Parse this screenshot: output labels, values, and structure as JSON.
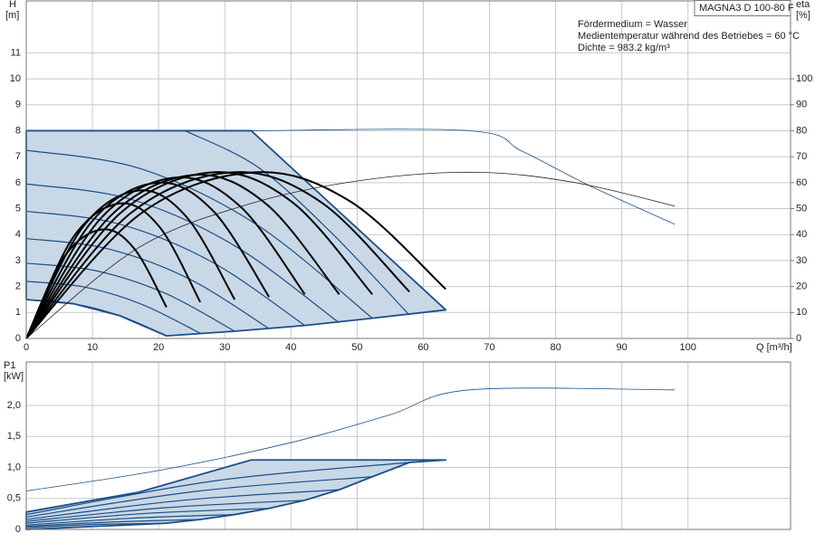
{
  "chart_data": [
    {
      "type": "line",
      "model": "MAGNA3 D 100-80 F",
      "annotations": [
        "Fördermedium = Wasser",
        "Medientemperatur während des Betriebes = 60 °C",
        "Dichte = 983.2 kg/m³"
      ],
      "y_label": "H",
      "y_unit": "[m]",
      "y2_label": "eta",
      "y2_unit": "[%]",
      "x_label": "Q [m³/h]",
      "xlim": [
        0,
        115.5
      ],
      "xticks": [
        0,
        10,
        20,
        30,
        40,
        50,
        60,
        70,
        80,
        90,
        100
      ],
      "xtick_labels": true,
      "ylim": [
        0,
        13
      ],
      "yticks": [
        0,
        1,
        2,
        3,
        4,
        5,
        6,
        7,
        8,
        9,
        10,
        11
      ],
      "y2lim": [
        0,
        130
      ],
      "y2ticks": [
        0,
        10,
        20,
        30,
        40,
        50,
        60,
        70,
        80,
        90,
        100
      ],
      "grid": true,
      "series": [
        {
          "kind": "area",
          "color": "#1c4f88",
          "fill": "#c9d8e6",
          "x": [
            0,
            34,
            63.4,
            52.3,
            42.1,
            31.5,
            21.2,
            14.1,
            7.1,
            0
          ],
          "values": [
            8,
            8,
            1.1,
            0.78,
            0.5,
            0.28,
            0.1,
            0.88,
            1.34,
            1.5
          ]
        },
        {
          "kind": "thin",
          "color": "#1c4f88",
          "x": [
            34,
            67,
            75,
            85,
            98
          ],
          "values": [
            8,
            8,
            7.2,
            5.9,
            4.4
          ]
        },
        {
          "kind": "line",
          "color": "#1c4f88",
          "x": [
            24,
            35,
            46,
            57.9
          ],
          "values": [
            8,
            6.6,
            4.1,
            0.9
          ]
        },
        {
          "kind": "line",
          "color": "#1c4f88",
          "x": [
            0,
            17.4,
            34.9,
            52.3
          ],
          "values": [
            7.25,
            6.53,
            4.37,
            0.78
          ]
        },
        {
          "kind": "line",
          "color": "#1c4f88",
          "x": [
            0,
            15.8,
            31.5,
            47.3
          ],
          "values": [
            5.95,
            5.36,
            3.57,
            0.6
          ]
        },
        {
          "kind": "line",
          "color": "#1c4f88",
          "x": [
            0,
            14,
            28.1,
            42.1
          ],
          "values": [
            4.9,
            4.41,
            2.94,
            0.5
          ]
        },
        {
          "kind": "line",
          "color": "#1c4f88",
          "x": [
            0,
            12.2,
            24.5,
            36.7
          ],
          "values": [
            3.85,
            3.46,
            2.31,
            0.38
          ]
        },
        {
          "kind": "line",
          "color": "#1c4f88",
          "x": [
            0,
            10.5,
            21,
            31.5
          ],
          "values": [
            2.9,
            2.61,
            1.74,
            0.28
          ]
        },
        {
          "kind": "line",
          "color": "#1c4f88",
          "x": [
            0,
            8.8,
            17.5,
            26.3
          ],
          "values": [
            2.2,
            1.98,
            1.31,
            0.2
          ]
        },
        {
          "kind": "line",
          "color": "#1c4f88",
          "x": [
            0,
            7.1,
            14.1,
            21.2
          ],
          "values": [
            1.5,
            1.34,
            0.88,
            0.1
          ]
        },
        {
          "kind": "thin",
          "color": "#222222",
          "axis": "y2",
          "x": [
            0,
            17,
            34,
            51,
            68,
            83,
            98
          ],
          "values": [
            0,
            35,
            52,
            61,
            64,
            60,
            51
          ]
        },
        {
          "kind": "bold",
          "color": "#000000",
          "axis": "y2",
          "x": [
            0,
            5.75,
            11.5,
            16.35,
            21.2
          ],
          "values": [
            0,
            31.5,
            42,
            34.5,
            12
          ]
        },
        {
          "kind": "bold",
          "color": "#000000",
          "axis": "y2",
          "x": [
            0,
            7.1,
            14.2,
            20.25,
            26.3
          ],
          "values": [
            0,
            39,
            52,
            42.6,
            14
          ]
        },
        {
          "kind": "bold",
          "color": "#000000",
          "axis": "y2",
          "x": [
            0,
            8.5,
            17,
            24.25,
            31.5
          ],
          "values": [
            0,
            42.75,
            57,
            46.7,
            15
          ]
        },
        {
          "kind": "bold",
          "color": "#000000",
          "axis": "y2",
          "x": [
            0,
            9.9,
            19.8,
            28.25,
            36.7
          ],
          "values": [
            0,
            45,
            60,
            49.1,
            16
          ]
        },
        {
          "kind": "bold",
          "color": "#000000",
          "axis": "y2",
          "x": [
            0,
            11.35,
            22.7,
            32.4,
            42.1
          ],
          "values": [
            0,
            46.5,
            62,
            50.7,
            17
          ]
        },
        {
          "kind": "bold",
          "color": "#000000",
          "axis": "y2",
          "x": [
            0,
            12.75,
            25.5,
            36.4,
            47.3
          ],
          "values": [
            0,
            47.25,
            63,
            51.5,
            17
          ]
        },
        {
          "kind": "bold",
          "color": "#000000",
          "axis": "y2",
          "x": [
            0,
            14.1,
            28.2,
            40.25,
            52.3
          ],
          "values": [
            0,
            48,
            64,
            52.4,
            17
          ]
        },
        {
          "kind": "bold",
          "color": "#000000",
          "axis": "y2",
          "x": [
            0,
            15.65,
            31.3,
            44.6,
            57.9
          ],
          "values": [
            0,
            48,
            64,
            52.4,
            18
          ]
        },
        {
          "kind": "bold",
          "color": "#000000",
          "axis": "y2",
          "x": [
            0,
            17.25,
            34.5,
            48.95,
            63.4
          ],
          "values": [
            0,
            48,
            64,
            52.8,
            19
          ]
        }
      ]
    },
    {
      "type": "line",
      "y_label": "P1",
      "y_unit": "[kW]",
      "xlim": [
        0,
        115.5
      ],
      "xticks": [
        0,
        10,
        20,
        30,
        40,
        50,
        60,
        70,
        80,
        90,
        100
      ],
      "xtick_labels": false,
      "ylim": [
        0,
        2.7
      ],
      "yticks": [
        0,
        {
          "value": 0.5,
          "label": "0,5"
        },
        {
          "value": 1,
          "label": "1,0"
        },
        {
          "value": 1.5,
          "label": "1,5"
        },
        {
          "value": 2,
          "label": "2,0"
        }
      ],
      "grid": true,
      "series": [
        {
          "kind": "area",
          "color": "#1c4f88",
          "fill": "#c9d8e6",
          "x": [
            0,
            17,
            34,
            63.4,
            57.9,
            52.3,
            47.3,
            42.1,
            36.7,
            31.5,
            26.3,
            21.2,
            0
          ],
          "values": [
            0.28,
            0.6,
            1.12,
            1.12,
            1.08,
            0.85,
            0.64,
            0.47,
            0.34,
            0.24,
            0.16,
            0.1,
            0
          ]
        },
        {
          "kind": "thin",
          "color": "#1c4f88",
          "x": [
            0,
            20,
            40,
            55,
            67,
            98
          ],
          "values": [
            0.62,
            0.95,
            1.4,
            1.85,
            2.25,
            2.25
          ]
        },
        {
          "kind": "line",
          "color": "#1c4f88",
          "x": [
            0,
            28.95,
            57.9
          ],
          "values": [
            0.24,
            0.79,
            1.08
          ]
        },
        {
          "kind": "line",
          "color": "#1c4f88",
          "x": [
            0,
            26.15,
            52.3
          ],
          "values": [
            0.2,
            0.62,
            0.85
          ]
        },
        {
          "kind": "line",
          "color": "#1c4f88",
          "x": [
            0,
            23.65,
            47.3
          ],
          "values": [
            0.16,
            0.47,
            0.64
          ]
        },
        {
          "kind": "line",
          "color": "#1c4f88",
          "x": [
            0,
            21.05,
            42.1
          ],
          "values": [
            0.13,
            0.35,
            0.47
          ]
        },
        {
          "kind": "line",
          "color": "#1c4f88",
          "x": [
            0,
            18.35,
            36.7
          ],
          "values": [
            0.1,
            0.26,
            0.34
          ]
        },
        {
          "kind": "line",
          "color": "#1c4f88",
          "x": [
            0,
            15.75,
            31.5
          ],
          "values": [
            0.07,
            0.18,
            0.24
          ]
        },
        {
          "kind": "line",
          "color": "#1c4f88",
          "x": [
            0,
            13.15,
            26.3
          ],
          "values": [
            0.05,
            0.12,
            0.16
          ]
        },
        {
          "kind": "line",
          "color": "#1c4f88",
          "x": [
            0,
            10.6,
            21.2
          ],
          "values": [
            0.03,
            0.08,
            0.1
          ]
        }
      ]
    }
  ]
}
